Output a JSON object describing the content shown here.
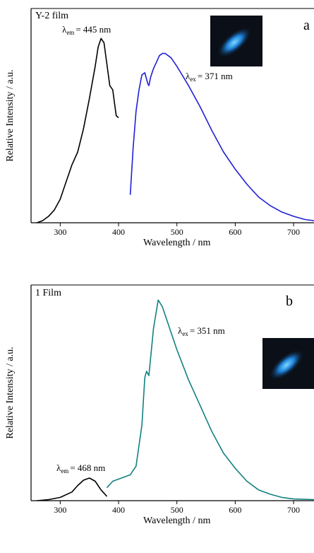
{
  "chart_data": [
    {
      "type": "line",
      "title": "Y-2 film",
      "panel_label": "a",
      "x_label": "Wavelength / nm",
      "y_label": "Relative Intensity / a.u.",
      "xlim": [
        250,
        735
      ],
      "ylim": [
        0,
        1
      ],
      "xticks": [
        300,
        400,
        500,
        600,
        700
      ],
      "annotations": [
        {
          "symbol": "λ",
          "sub": "em",
          "text": "= 445 nm"
        },
        {
          "symbol": "λ",
          "sub": "ex",
          "text": "= 371 nm"
        }
      ],
      "series": [
        {
          "color": "#000000",
          "x": [
            260,
            270,
            280,
            290,
            300,
            310,
            320,
            330,
            340,
            350,
            360,
            365,
            370,
            375,
            380,
            385,
            390,
            393,
            396,
            400
          ],
          "values": [
            0.0,
            0.01,
            0.03,
            0.06,
            0.11,
            0.19,
            0.27,
            0.33,
            0.44,
            0.58,
            0.73,
            0.82,
            0.86,
            0.84,
            0.74,
            0.64,
            0.62,
            0.56,
            0.5,
            0.49
          ]
        },
        {
          "color": "#1f1fd6",
          "x": [
            420,
            425,
            430,
            435,
            440,
            445,
            450,
            452,
            455,
            460,
            465,
            470,
            475,
            480,
            490,
            500,
            520,
            540,
            560,
            580,
            600,
            620,
            640,
            660,
            680,
            700,
            720,
            735
          ],
          "values": [
            0.13,
            0.35,
            0.52,
            0.62,
            0.69,
            0.7,
            0.65,
            0.64,
            0.68,
            0.72,
            0.75,
            0.78,
            0.79,
            0.79,
            0.77,
            0.73,
            0.64,
            0.54,
            0.43,
            0.33,
            0.25,
            0.18,
            0.12,
            0.08,
            0.05,
            0.03,
            0.015,
            0.01
          ]
        }
      ]
    },
    {
      "type": "line",
      "title": "1 Film",
      "panel_label": "b",
      "x_label": "Wavelength / nm",
      "y_label": "Relative Intensity / a.u.",
      "xlim": [
        250,
        735
      ],
      "ylim": [
        0,
        1
      ],
      "xticks": [
        300,
        400,
        500,
        600,
        700
      ],
      "annotations": [
        {
          "symbol": "λ",
          "sub": "ex",
          "text": "= 351 nm"
        },
        {
          "symbol": "λ",
          "sub": "em",
          "text": "= 468 nm"
        }
      ],
      "series": [
        {
          "color": "#000000",
          "x": [
            260,
            280,
            300,
            320,
            330,
            340,
            350,
            360,
            370,
            380
          ],
          "values": [
            0.0,
            0.005,
            0.015,
            0.04,
            0.07,
            0.095,
            0.105,
            0.09,
            0.05,
            0.02
          ]
        },
        {
          "color": "#138080",
          "x": [
            380,
            390,
            400,
            410,
            420,
            430,
            440,
            445,
            448,
            452,
            460,
            468,
            475,
            490,
            500,
            520,
            540,
            560,
            580,
            600,
            620,
            640,
            660,
            680,
            700,
            735
          ],
          "values": [
            0.06,
            0.09,
            0.1,
            0.11,
            0.12,
            0.16,
            0.35,
            0.57,
            0.6,
            0.58,
            0.8,
            0.93,
            0.9,
            0.78,
            0.7,
            0.56,
            0.44,
            0.32,
            0.22,
            0.15,
            0.09,
            0.05,
            0.03,
            0.015,
            0.008,
            0.005
          ]
        }
      ]
    }
  ]
}
